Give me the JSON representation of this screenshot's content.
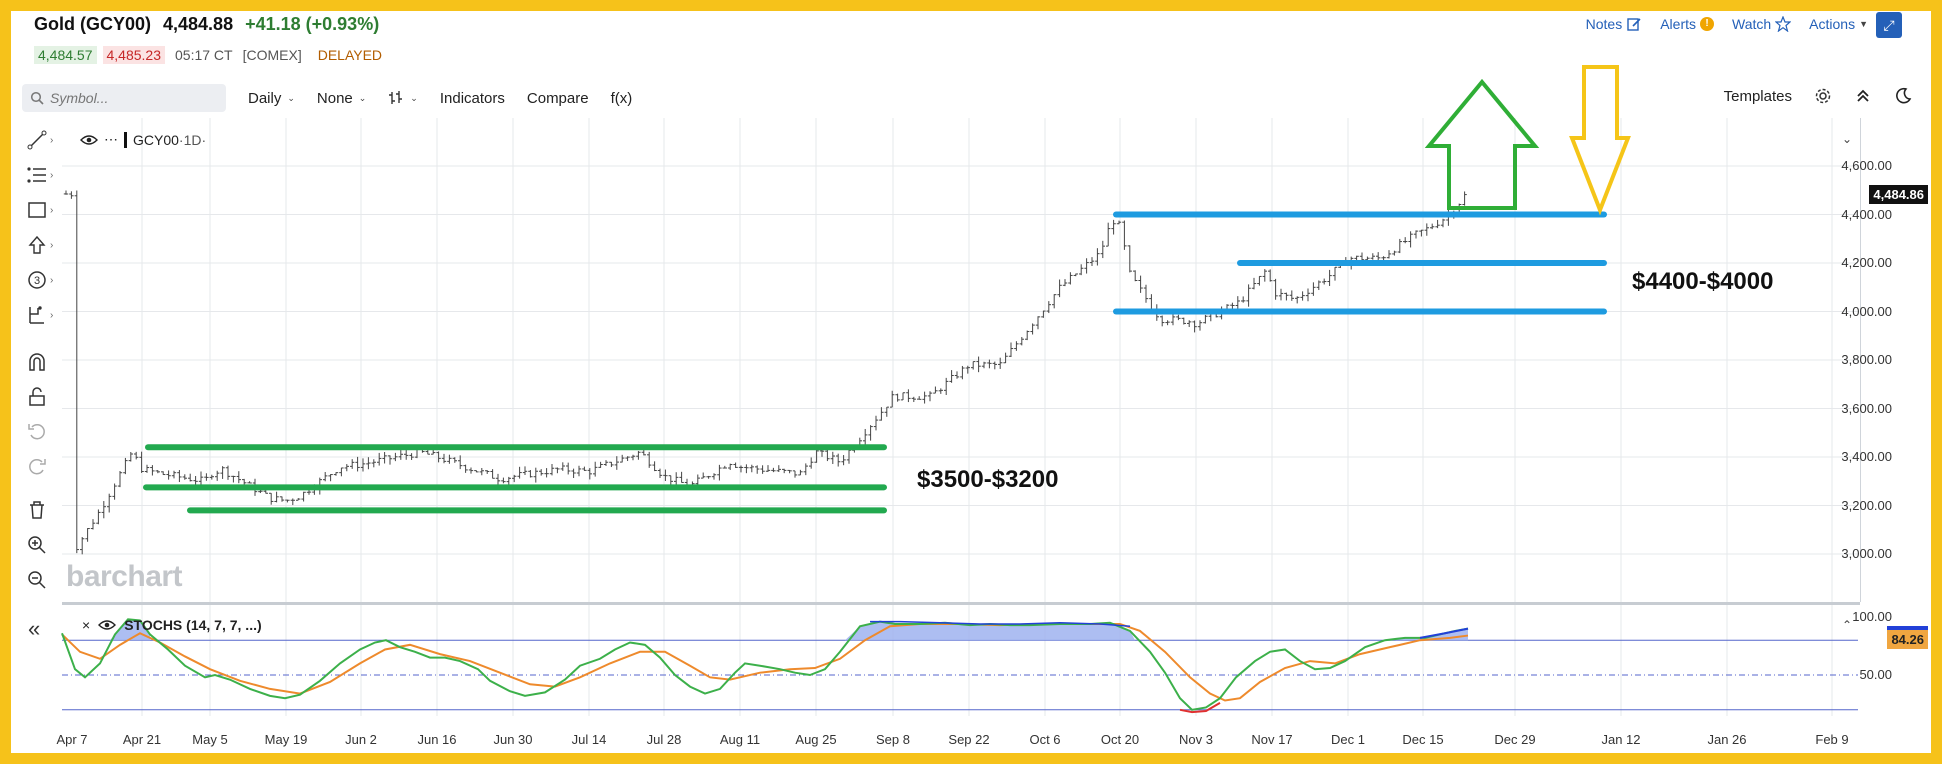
{
  "header": {
    "name": "Gold (GCY00)",
    "price": "4,484.88",
    "change": "+41.18 (+0.93%)",
    "bid": "4,484.57",
    "ask": "4,485.23",
    "time": "05:17 CT",
    "exchange": "[COMEX]",
    "status": "DELAYED"
  },
  "top_actions": {
    "notes": "Notes",
    "alerts": "Alerts",
    "alert_badge": "!",
    "watch": "Watch",
    "actions": "Actions"
  },
  "toolbar": {
    "symbol_placeholder": "Symbol...",
    "interval": "Daily",
    "overlay": "None",
    "indicators": "Indicators",
    "compare": "Compare",
    "fx": "f(x)",
    "templates": "Templates"
  },
  "legend": {
    "symbol": "GCY00",
    "interval": "·1D·",
    "study": "STOCHS (14, 7, 7, ...)"
  },
  "watermark": "barchart",
  "price_axis": {
    "labels": [
      "4,600.00",
      "4,400.00",
      "4,200.00",
      "4,000.00",
      "3,800.00",
      "3,600.00",
      "3,400.00",
      "3,200.00",
      "3,000.00"
    ],
    "values": [
      4600,
      4400,
      4200,
      4000,
      3800,
      3600,
      3400,
      3200,
      3000
    ],
    "last_price_tag": "4,484.86"
  },
  "study_axis": {
    "labels": [
      "100.00",
      "50.00"
    ],
    "values": [
      100,
      50
    ],
    "current_tag": "84.26"
  },
  "date_axis": {
    "labels": [
      "Apr 7",
      "Apr 21",
      "May 5",
      "May 19",
      "Jun 2",
      "Jun 16",
      "Jun 30",
      "Jul 14",
      "Jul 28",
      "Aug 11",
      "Aug 25",
      "Sep 8",
      "Sep 22",
      "Oct 6",
      "Oct 20",
      "Nov 3",
      "Nov 17",
      "Dec 1",
      "Dec 15",
      "Dec 29",
      "Jan 12",
      "Jan 26",
      "Feb 9"
    ]
  },
  "annotations": {
    "green_range": "$3500-$3200",
    "blue_range": "$4400-$4000"
  },
  "colors": {
    "up": "#2e7d32",
    "down": "#c62828",
    "green_lines": "#22a94f",
    "blue_lines": "#1e9be0",
    "stoch_k": "#3cb04a",
    "stoch_d": "#ee8a2c",
    "stoch_fill": "#9fb3f0",
    "frame": "#f6c21a",
    "up_arrow": "#2fae36",
    "down_arrow": "#f5c518"
  },
  "chart_data": {
    "type": "ohlc",
    "symbol": "GCY00",
    "interval": "1D",
    "ylim": [
      2900,
      4700
    ],
    "horizontal_levels": {
      "green": [
        3440,
        3275,
        3180
      ],
      "blue": [
        4400,
        4200,
        4000
      ]
    },
    "closes_weekly_approx": [
      {
        "x": "Apr 7",
        "y": 3000
      },
      {
        "x": "Apr 21",
        "y": 3350
      },
      {
        "x": "May 5",
        "y": 3330
      },
      {
        "x": "May 19",
        "y": 3220
      },
      {
        "x": "Jun 2",
        "y": 3370
      },
      {
        "x": "Jun 16",
        "y": 3400
      },
      {
        "x": "Jun 30",
        "y": 3320
      },
      {
        "x": "Jul 14",
        "y": 3340
      },
      {
        "x": "Jul 28",
        "y": 3320
      },
      {
        "x": "Aug 11",
        "y": 3360
      },
      {
        "x": "Aug 25",
        "y": 3420
      },
      {
        "x": "Sep 8",
        "y": 3650
      },
      {
        "x": "Sep 22",
        "y": 3780
      },
      {
        "x": "Oct 6",
        "y": 4020
      },
      {
        "x": "Oct 20",
        "y": 4350
      },
      {
        "x": "Nov 3",
        "y": 3950
      },
      {
        "x": "Nov 17",
        "y": 4080
      },
      {
        "x": "Dec 1",
        "y": 4220
      },
      {
        "x": "Dec 15",
        "y": 4330
      },
      {
        "x": "Dec 22",
        "y": 4484.86
      }
    ],
    "stochastic": {
      "name": "STOCHS (14, 7, 7, ...)",
      "current": 84.26,
      "ylim": [
        0,
        100
      ]
    }
  }
}
